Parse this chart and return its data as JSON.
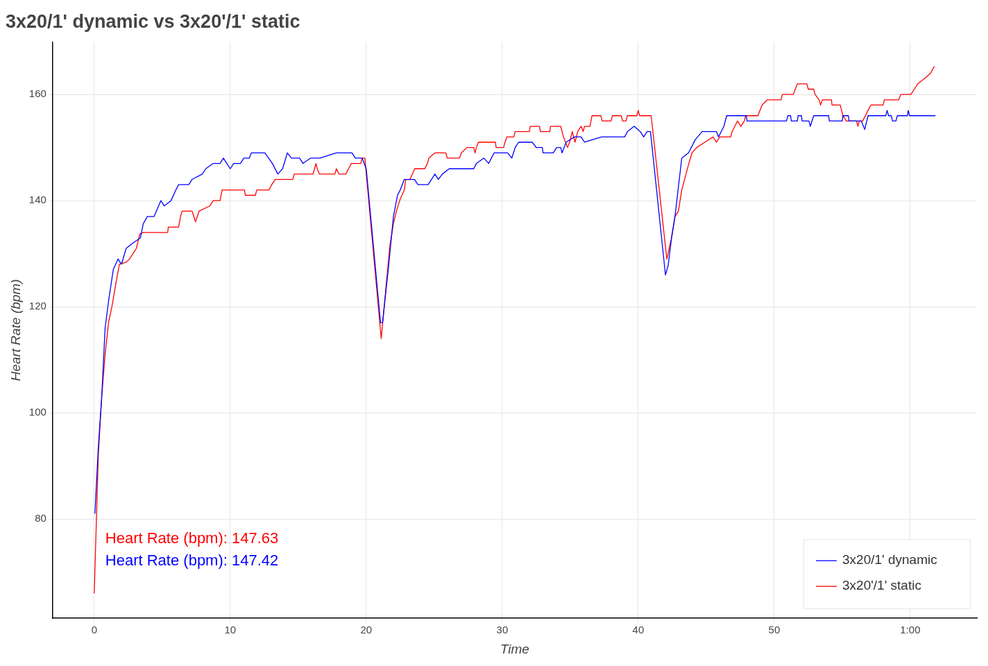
{
  "chart_data": {
    "type": "line",
    "title": "3x20/1' dynamic vs 3x20'/1' static",
    "xlabel": "Time",
    "ylabel": "Heart Rate (bpm)",
    "xlim": [
      -3.06,
      64.9
    ],
    "ylim": [
      61.3,
      169.9
    ],
    "xticks": [
      0,
      10,
      20,
      30,
      40,
      50,
      {
        "value": 60,
        "label": "1:00"
      }
    ],
    "yticks": [
      80,
      100,
      120,
      140,
      160
    ],
    "grid": true,
    "legend": "bottom right",
    "marker": "none",
    "line_style": "solid",
    "annotations": [
      "Heart Rate (bpm): 147.63",
      "Heart Rate (bpm): 147.42"
    ],
    "series": [
      {
        "name": "3x20/1' dynamic",
        "color": "#0000ff",
        "x": [
          0.05,
          0.3,
          0.55,
          0.8,
          1.05,
          1.4,
          1.75,
          2.0,
          2.35,
          2.85,
          3.4,
          3.6,
          3.9,
          4.4,
          4.9,
          5.15,
          5.65,
          6.0,
          6.2,
          6.95,
          7.2,
          7.95,
          8.2,
          8.75,
          9.25,
          9.5,
          9.75,
          10.0,
          10.25,
          10.75,
          11.0,
          11.4,
          11.55,
          12.55,
          13.1,
          13.5,
          13.85,
          14.2,
          14.5,
          15.1,
          15.35,
          15.9,
          16.6,
          17.8,
          18.95,
          19.2,
          19.7,
          20.0,
          21.05,
          21.2,
          21.65,
          22.0,
          22.3,
          22.5,
          22.8,
          23.55,
          23.8,
          24.55,
          24.8,
          25.05,
          25.3,
          25.6,
          26.1,
          27.9,
          28.1,
          28.65,
          29.0,
          29.4,
          30.4,
          30.7,
          30.95,
          31.2,
          32.2,
          32.5,
          32.95,
          33.0,
          33.75,
          34.0,
          34.3,
          34.4,
          34.7,
          35.3,
          35.8,
          36.05,
          37.3,
          39.0,
          39.2,
          39.7,
          40.15,
          40.4,
          40.65,
          40.9,
          42.0,
          42.2,
          42.45,
          42.7,
          43.2,
          43.7,
          44.2,
          44.7,
          45.75,
          45.9,
          46.3,
          46.5,
          47.95,
          48.0,
          50.9,
          51.0,
          51.2,
          51.25,
          51.7,
          51.75,
          52.0,
          52.05,
          52.55,
          52.65,
          52.9,
          54.0,
          54.05,
          55.0,
          55.05,
          55.45,
          55.5,
          56.4,
          56.65,
          56.9,
          58.2,
          58.3,
          58.4,
          58.6,
          58.7,
          58.95,
          59.05,
          59.8,
          59.85,
          59.95,
          61.85
        ],
        "values": [
          81,
          93.5,
          103,
          116,
          121,
          127,
          129,
          128,
          131,
          132,
          133,
          135.6,
          137,
          137,
          140,
          139,
          140,
          142,
          143,
          143,
          144,
          145,
          146,
          147,
          147,
          148,
          147,
          146,
          147,
          147,
          148,
          148,
          149,
          149,
          147,
          145,
          146,
          149,
          148,
          148,
          147,
          148,
          148,
          149,
          149,
          148,
          148,
          146,
          117,
          117,
          127.8,
          137,
          141,
          142,
          144,
          144,
          143,
          143,
          144,
          145,
          144,
          145,
          146,
          146,
          147,
          148,
          147,
          149,
          149,
          148,
          150,
          151,
          151,
          150,
          150,
          149,
          149,
          150,
          150,
          149,
          151,
          152,
          152,
          151,
          152,
          152,
          153,
          154,
          153,
          152,
          153,
          153,
          126,
          127.8,
          133,
          137,
          148,
          149,
          151.5,
          153,
          153,
          152,
          154,
          156,
          156,
          155,
          155,
          156,
          156,
          155,
          155,
          156,
          156,
          155,
          155,
          154,
          156,
          156,
          155,
          155,
          156,
          156,
          155,
          155,
          153.4,
          156,
          156,
          157,
          156,
          156,
          155,
          155,
          156,
          156,
          157,
          156,
          156
        ]
      },
      {
        "name": "3x20'/1' static",
        "color": "#ff0000",
        "x": [
          0,
          0.3,
          0.55,
          0.8,
          1.05,
          1.3,
          1.6,
          1.85,
          2.35,
          2.6,
          2.85,
          3.1,
          3.35,
          3.6,
          5.4,
          5.45,
          6.2,
          6.35,
          6.45,
          7.2,
          7.45,
          7.7,
          8.5,
          8.75,
          9.25,
          9.4,
          11.05,
          11.1,
          11.85,
          11.95,
          12.85,
          13.05,
          13.3,
          14.6,
          14.7,
          16.1,
          16.2,
          16.3,
          16.4,
          16.55,
          17.7,
          17.8,
          18.0,
          18.5,
          18.7,
          18.9,
          19.6,
          19.7,
          19.9,
          21.1,
          21.5,
          21.75,
          22.0,
          22.25,
          22.5,
          22.8,
          22.9,
          23.2,
          23.4,
          23.55,
          24.3,
          24.5,
          24.6,
          25.05,
          25.85,
          25.95,
          26.85,
          27.0,
          27.4,
          27.9,
          28.0,
          28.1,
          28.25,
          29.5,
          29.55,
          30.1,
          30.2,
          30.35,
          30.85,
          30.95,
          32.0,
          32.05,
          32.75,
          32.8,
          33.5,
          33.55,
          34.3,
          34.5,
          34.8,
          34.95,
          35.15,
          35.35,
          35.55,
          35.8,
          35.95,
          36.05,
          36.45,
          36.6,
          37.25,
          37.35,
          38.0,
          38.1,
          38.75,
          38.85,
          39.1,
          39.2,
          39.9,
          40.0,
          40.1,
          40.95,
          42.1,
          42.45,
          42.7,
          42.95,
          43.2,
          43.7,
          43.95,
          44.3,
          44.9,
          45.5,
          45.75,
          46.0,
          46.8,
          46.9,
          47.1,
          47.3,
          47.55,
          47.8,
          47.9,
          48.8,
          49.1,
          49.5,
          50.5,
          50.6,
          51.4,
          51.55,
          51.7,
          52.4,
          52.5,
          52.9,
          53.0,
          53.3,
          53.4,
          53.55,
          54.2,
          54.25,
          54.85,
          55.05,
          55.3,
          56.05,
          56.15,
          56.25,
          56.5,
          56.7,
          56.9,
          57.1,
          58.0,
          58.1,
          59.15,
          59.3,
          60.05,
          60.3,
          60.55,
          61.05,
          61.5,
          61.7,
          61.8
        ],
        "values": [
          66,
          92,
          103,
          111,
          117,
          120,
          124.5,
          128,
          128.4,
          129,
          130,
          131,
          133.7,
          134,
          134,
          135,
          135,
          137,
          138,
          138,
          136,
          138,
          139,
          140,
          140,
          142,
          142,
          141,
          141,
          142,
          142,
          143,
          144,
          144,
          145,
          145,
          146,
          147,
          146,
          145,
          145,
          146,
          145,
          145,
          146,
          147,
          147,
          148,
          148,
          114,
          125,
          131.7,
          135.7,
          138.3,
          140.3,
          142,
          144,
          144,
          145,
          146,
          146,
          147,
          148,
          149,
          149,
          148,
          148,
          149,
          150,
          150,
          149,
          150,
          151,
          151,
          150,
          150,
          151,
          152,
          152,
          153,
          153,
          154,
          154,
          153,
          153,
          154,
          154,
          152,
          150,
          151,
          153,
          151,
          153,
          154,
          153,
          154,
          154,
          156,
          156,
          155,
          155,
          156,
          156,
          155,
          155,
          156,
          156,
          157,
          156,
          156,
          129,
          133,
          137,
          138,
          142,
          146.8,
          149,
          150,
          151,
          152,
          151,
          152,
          152,
          153,
          154,
          155,
          154,
          155,
          156,
          156,
          158,
          159,
          159,
          160,
          160,
          161,
          162,
          162,
          161,
          161,
          160,
          159,
          158,
          159,
          159,
          158,
          158,
          156,
          155,
          155,
          154,
          155,
          155,
          156,
          157,
          158,
          158,
          159,
          159,
          160,
          160,
          161,
          162,
          163,
          164,
          165,
          165.3
        ]
      }
    ]
  }
}
